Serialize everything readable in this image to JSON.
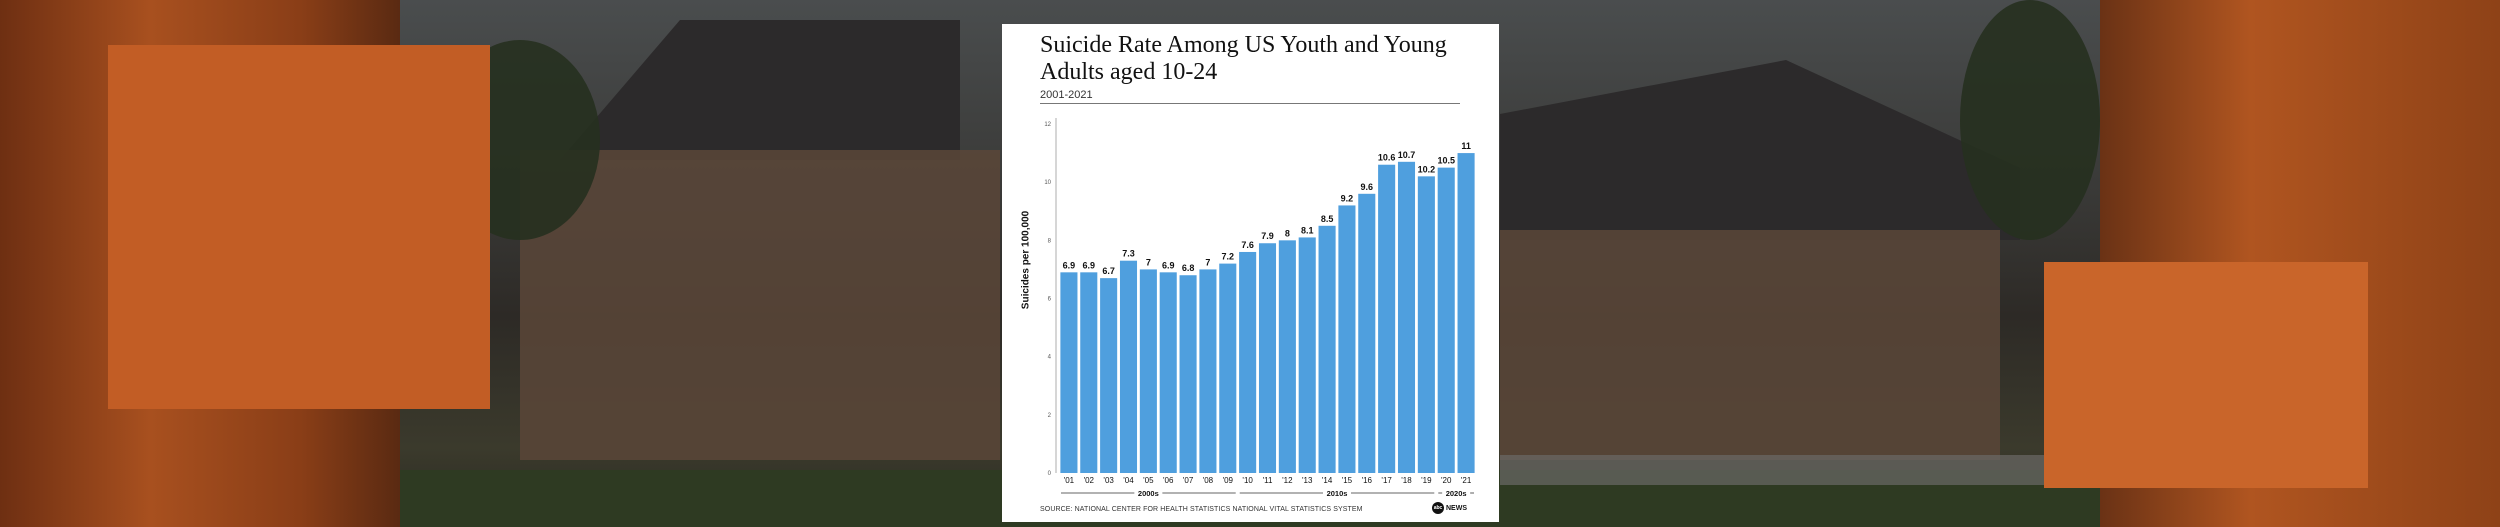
{
  "panel": {
    "title": "Suicide Rate Among US Youth and Young Adults aged 10-24",
    "subtitle": "2001-2021",
    "source": "SOURCE: NATIONAL CENTER FOR HEALTH STATISTICS NATIONAL VITAL STATISTICS SYSTEM",
    "logo_mark": "abc",
    "logo_text": "NEWS"
  },
  "chart_data": {
    "type": "bar",
    "title": "Suicide Rate Among US Youth and Young Adults aged 10-24",
    "subtitle": "2001-2021",
    "ylabel": "Suicides per 100,000",
    "categories": [
      "'01",
      "'02",
      "'03",
      "'04",
      "'05",
      "'06",
      "'07",
      "'08",
      "'09",
      "'10",
      "'11",
      "'12",
      "'13",
      "'14",
      "'15",
      "'16",
      "'17",
      "'18",
      "'19",
      "'20",
      "'21"
    ],
    "values": [
      6.9,
      6.9,
      6.7,
      7.3,
      7,
      6.9,
      6.8,
      7,
      7.2,
      7.6,
      7.9,
      8,
      8.1,
      8.5,
      9.2,
      9.6,
      10.6,
      10.7,
      10.2,
      10.5,
      11
    ],
    "data_labels": [
      "6.9",
      "6.9",
      "6.7",
      "7.3",
      "7",
      "6.9",
      "6.8",
      "7",
      "7.2",
      "7.6",
      "7.9",
      "8",
      "8.1",
      "8.5",
      "9.2",
      "9.6",
      "10.6",
      "10.7",
      "10.2",
      "10.5",
      "11"
    ],
    "yticks": [
      0,
      2,
      4,
      6,
      8,
      10,
      12
    ],
    "ylim": [
      0,
      12
    ],
    "decades": [
      {
        "label": "2000s",
        "start": 0,
        "end": 8
      },
      {
        "label": "2010s",
        "start": 9,
        "end": 18
      },
      {
        "label": "2020s",
        "start": 19,
        "end": 20
      }
    ],
    "bar_color": "#4f9fde",
    "grid": false
  }
}
